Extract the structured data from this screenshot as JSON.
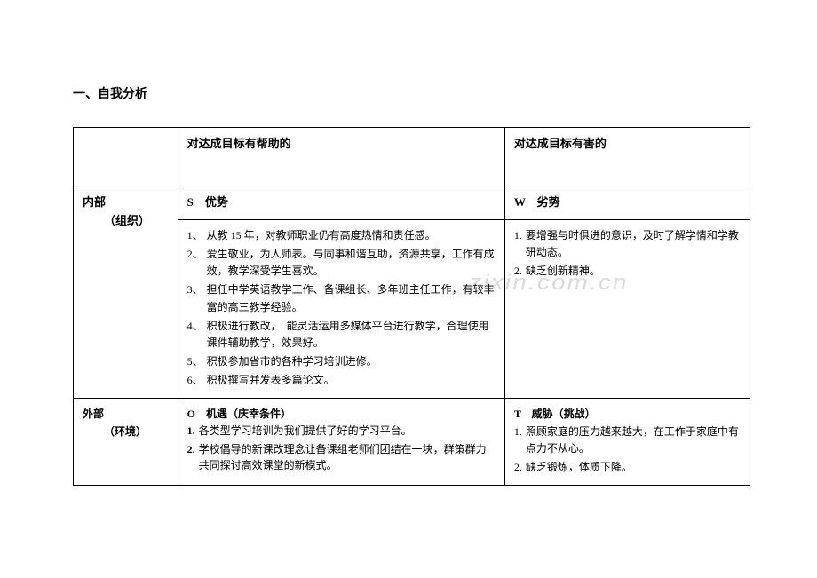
{
  "title": "一、自我分析",
  "table": {
    "header": {
      "col2": "对达成目标有帮助的",
      "col3": "对达成目标有害的"
    },
    "row2": {
      "col1_line1": "内部",
      "col1_line2": "（组织）",
      "col2": "S　优势",
      "col3": "W　劣势"
    },
    "row3": {
      "strengths": [
        {
          "num": "1、",
          "text": "从教 15 年，对教师职业仍有高度热情和责任感。"
        },
        {
          "num": "2、",
          "text": "爱生敬业，为人师表。与同事和谐互助，资源共享，工作有成效，教学深受学生喜欢。"
        },
        {
          "num": "3、",
          "text": "担任中学英语教学工作、备课组长、多年班主任工作，有较丰富的高三教学经验。"
        },
        {
          "num": "4、",
          "text": "积极进行教改，　能灵活运用多媒体平台进行教学，合理使用课件辅助教学，效果好。"
        },
        {
          "num": "5、",
          "text": "积极参加省市的各种学习培训进修。"
        },
        {
          "num": "6、",
          "text": "积极撰写并发表多篇论文。"
        }
      ],
      "weaknesses": [
        {
          "num": "1.",
          "text": "要增强与时俱进的意识，及时了解学情和学教研动态。"
        },
        {
          "num": "2.",
          "text": "缺乏创新精神。"
        }
      ]
    },
    "row4": {
      "col1_line1": "外部",
      "col1_line2": "（环境）",
      "col2_header": "O　机遇（庆幸条件）",
      "col3_header": "T　威胁（挑战）",
      "opportunities": [
        {
          "num": "1.",
          "text": "各类型学习培训为我们提供了好的学习平台。"
        },
        {
          "num": "2.",
          "text": "学校倡导的新课改理念让备课组老师们团结在一块，群策群力共同探讨高效课堂的新模式。"
        }
      ],
      "threats": [
        {
          "num": "1.",
          "text": "照顾家庭的压力越来越大，在工作于家庭中有点力不从心。"
        },
        {
          "num": "2.",
          "text": "缺乏锻炼，体质下降。"
        }
      ]
    }
  },
  "watermark": "zixin.com.cn",
  "colors": {
    "text": "#000000",
    "border": "#000000",
    "background": "#ffffff",
    "watermark": "rgba(150,150,150,0.35)"
  }
}
